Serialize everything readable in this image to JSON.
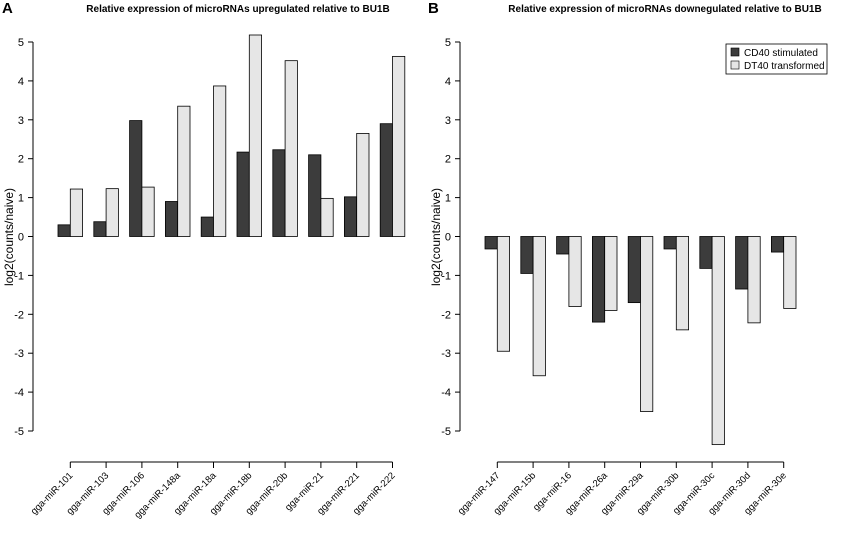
{
  "colors": {
    "cd40": "#3c3c3c",
    "dt40": "#e6e6e6"
  },
  "chart_data": [
    {
      "panel": "A",
      "type": "bar",
      "title": "Relative expression of microRNAs upregulated relative to BU1B",
      "xlabel": "",
      "ylabel": "log2(counts/naive)",
      "ylim": [
        -5,
        5
      ],
      "yticks": [
        -5,
        -4,
        -3,
        -2,
        -1,
        0,
        1,
        2,
        3,
        4,
        5
      ],
      "legend": "",
      "categories": [
        "gga-miR-101",
        "gga-miR-103",
        "gga-miR-106",
        "gga-miR-148a",
        "gga-miR-18a",
        "gga-miR-18b",
        "gga-miR-20b",
        "gga-miR-21",
        "gga-miR-221",
        "gga-miR-222"
      ],
      "series": [
        {
          "name": "CD40 stimulated",
          "values": [
            0.3,
            0.38,
            2.98,
            0.9,
            0.5,
            2.17,
            2.23,
            2.1,
            1.02,
            2.9
          ]
        },
        {
          "name": "DT40 transformed",
          "values": [
            1.22,
            1.23,
            1.27,
            3.35,
            3.87,
            5.18,
            4.52,
            0.98,
            2.65,
            4.63
          ]
        }
      ]
    },
    {
      "panel": "B",
      "type": "bar",
      "title": "Relative expression of microRNAs downegulated relative to BU1B",
      "xlabel": "",
      "ylabel": "log2(counts/naive)",
      "ylim": [
        -5,
        5
      ],
      "yticks": [
        -5,
        -4,
        -3,
        -2,
        -1,
        0,
        1,
        2,
        3,
        4,
        5
      ],
      "legend": "top-right",
      "categories": [
        "gga-miR-147",
        "gga-miR-15b",
        "gga-miR-16",
        "gga-miR-26a",
        "gga-miR-29a",
        "gga-miR-30b",
        "gga-miR-30c",
        "gga-miR-30d",
        "gga-miR-30e"
      ],
      "series": [
        {
          "name": "CD40 stimulated",
          "values": [
            -0.32,
            -0.95,
            -0.45,
            -2.2,
            -1.7,
            -0.32,
            -0.82,
            -1.35,
            -0.4
          ]
        },
        {
          "name": "DT40 transformed",
          "values": [
            -2.95,
            -3.58,
            -1.8,
            -1.9,
            -4.5,
            -2.4,
            -5.35,
            -2.22,
            -1.85
          ]
        }
      ]
    }
  ]
}
